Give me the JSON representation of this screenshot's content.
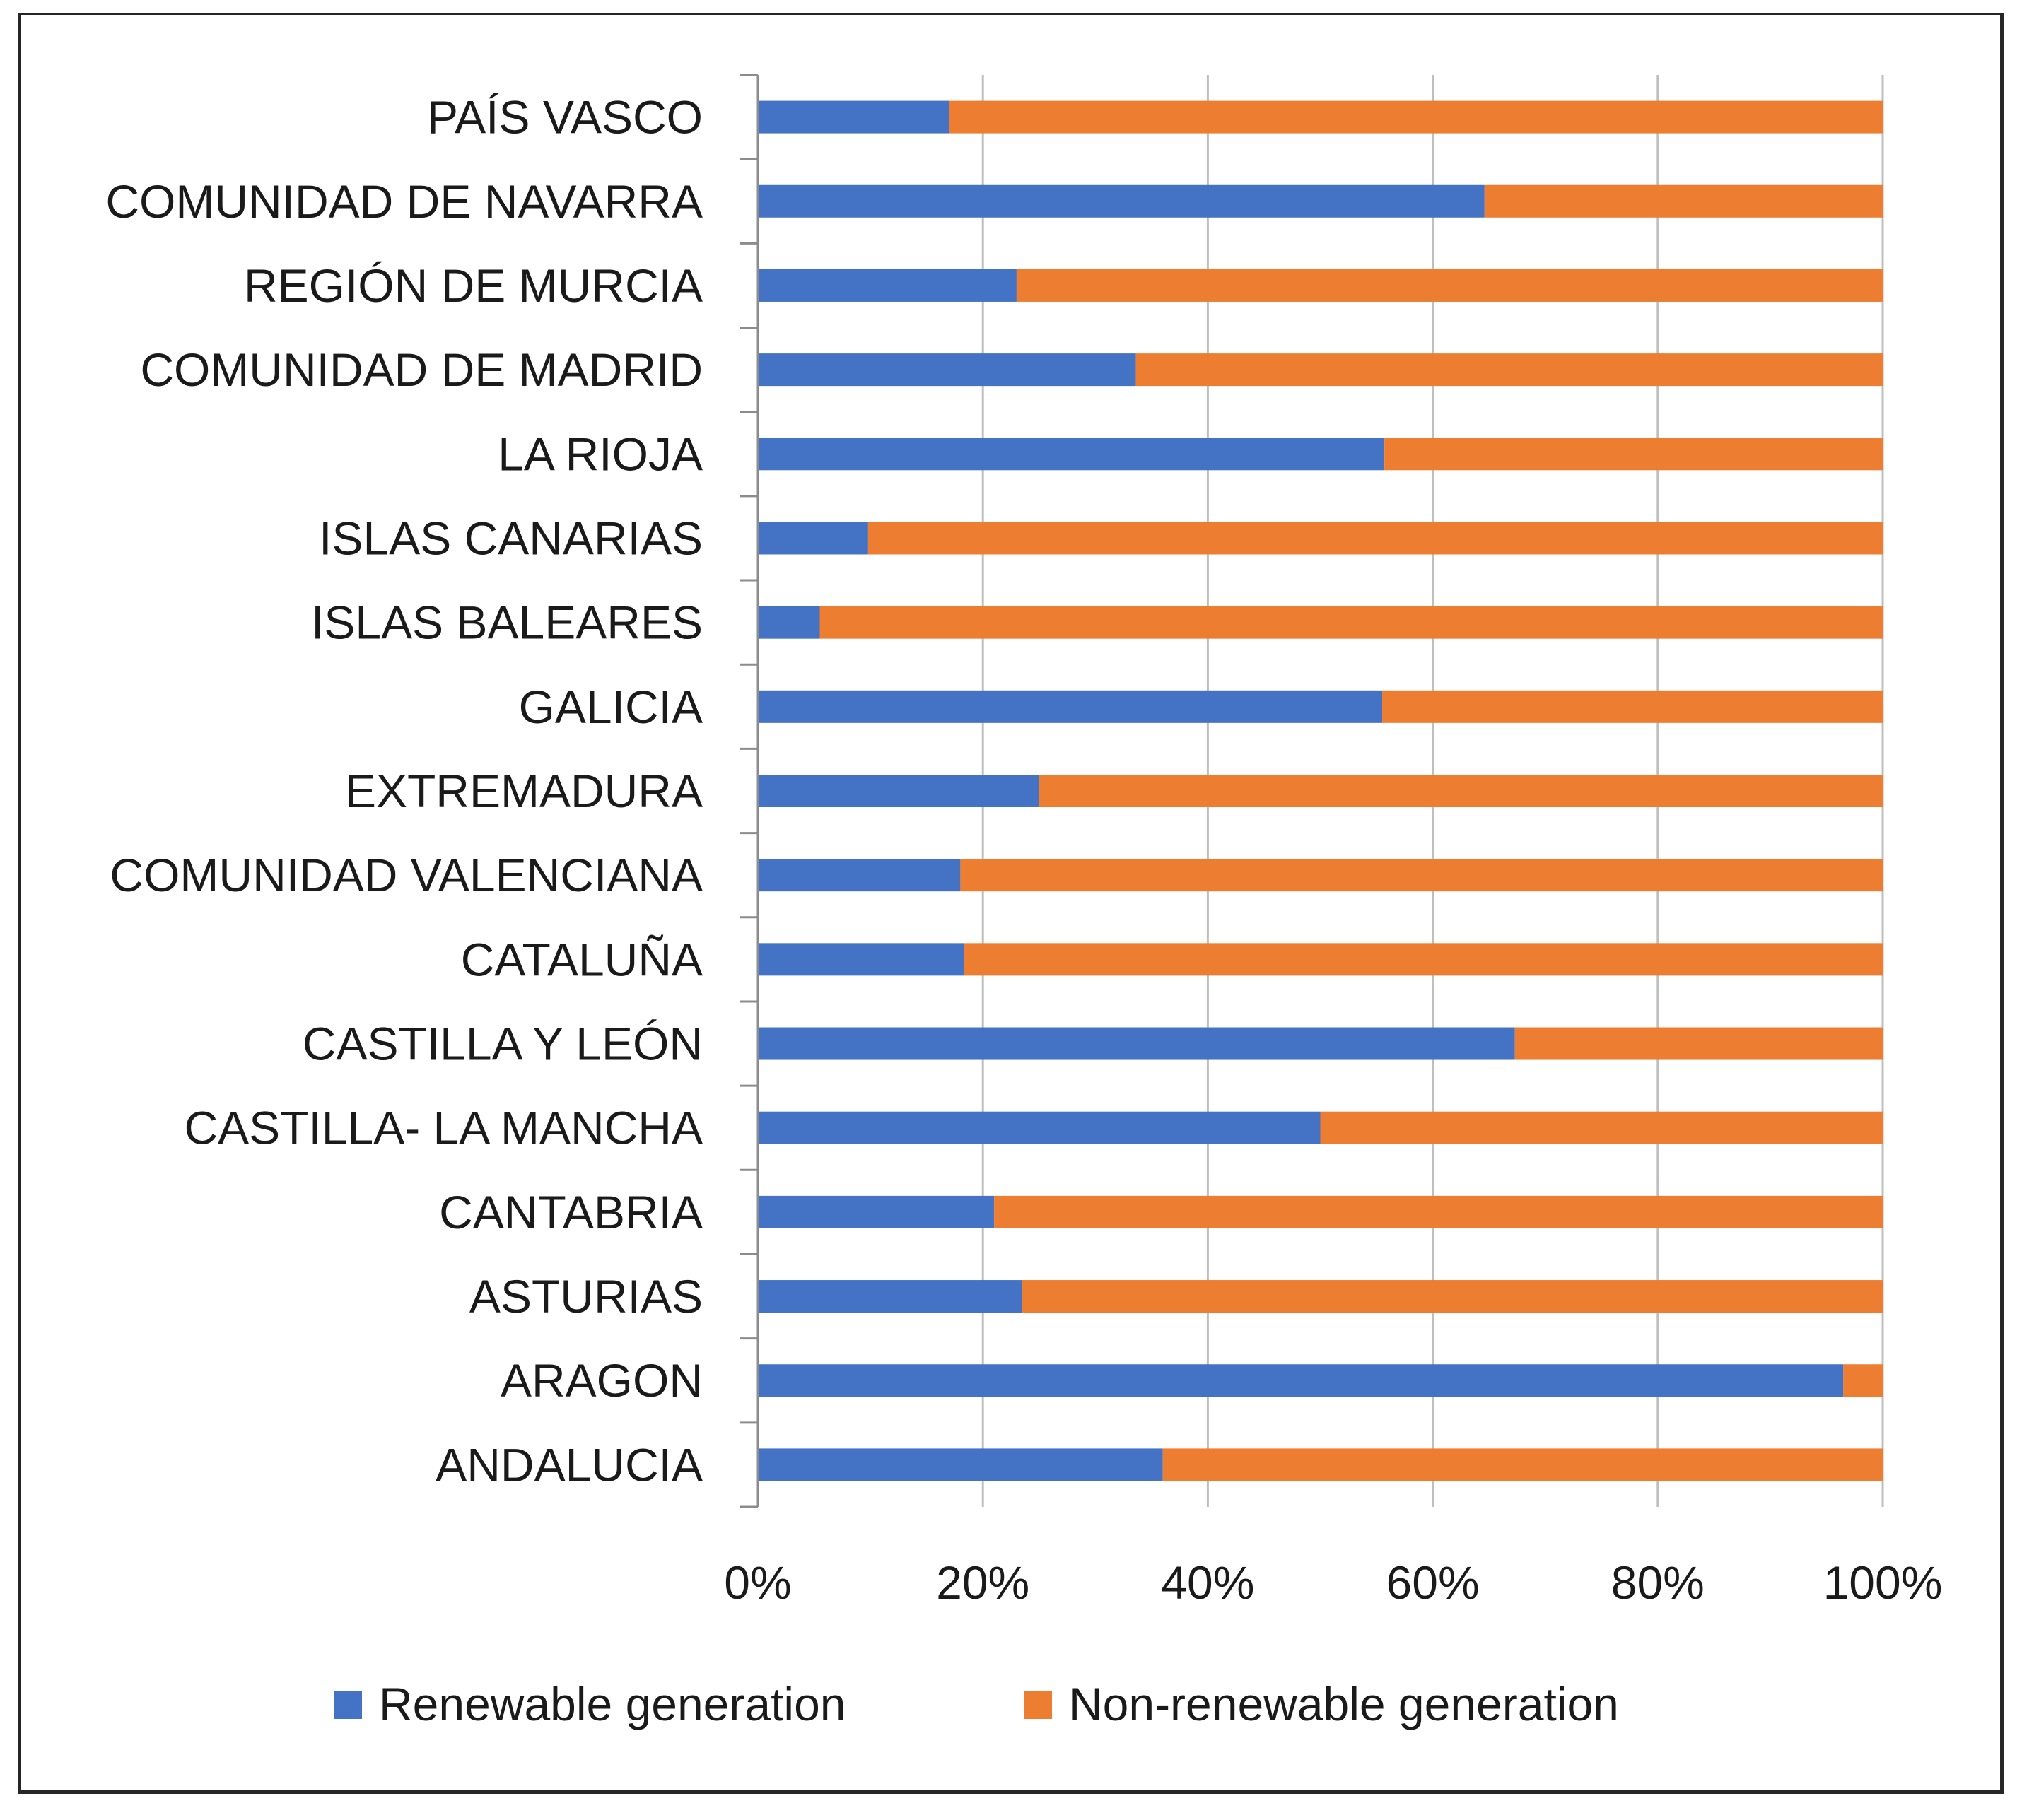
{
  "chart_data": {
    "type": "bar",
    "orientation": "horizontal",
    "stacked": "percent",
    "title": "",
    "xlabel": "",
    "ylabel": "",
    "xlim": [
      0,
      100
    ],
    "x_ticks": [
      "0%",
      "20%",
      "40%",
      "60%",
      "80%",
      "100%"
    ],
    "grid": true,
    "legend_position": "bottom",
    "categories": [
      "ANDALUCIA",
      "ARAGON",
      "ASTURIAS",
      "CANTABRIA",
      "CASTILLA- LA MANCHA",
      "CASTILLA Y LEÓN",
      "CATALUÑA",
      "COMUNIDAD VALENCIANA",
      "EXTREMADURA",
      "GALICIA",
      "ISLAS BALEARES",
      "ISLAS CANARIAS",
      "LA RIOJA",
      "COMUNIDAD DE MADRID",
      "REGIÓN DE MURCIA",
      "COMUNIDAD DE NAVARRA",
      "PAÍS VASCO"
    ],
    "series": [
      {
        "name": "Renewable generation",
        "color": "#4472C4",
        "values": [
          36,
          96.5,
          23.5,
          21,
          50,
          67.3,
          18.3,
          18,
          25,
          55.5,
          5.5,
          9.8,
          55.7,
          33.6,
          23,
          64.6,
          17
        ]
      },
      {
        "name": "Non-renewable generation",
        "color": "#ED7D31",
        "values": [
          64,
          3.5,
          76.5,
          79,
          50,
          32.7,
          81.7,
          82,
          75,
          44.5,
          94.5,
          90.2,
          44.3,
          66.4,
          77,
          35.4,
          83
        ]
      }
    ]
  }
}
